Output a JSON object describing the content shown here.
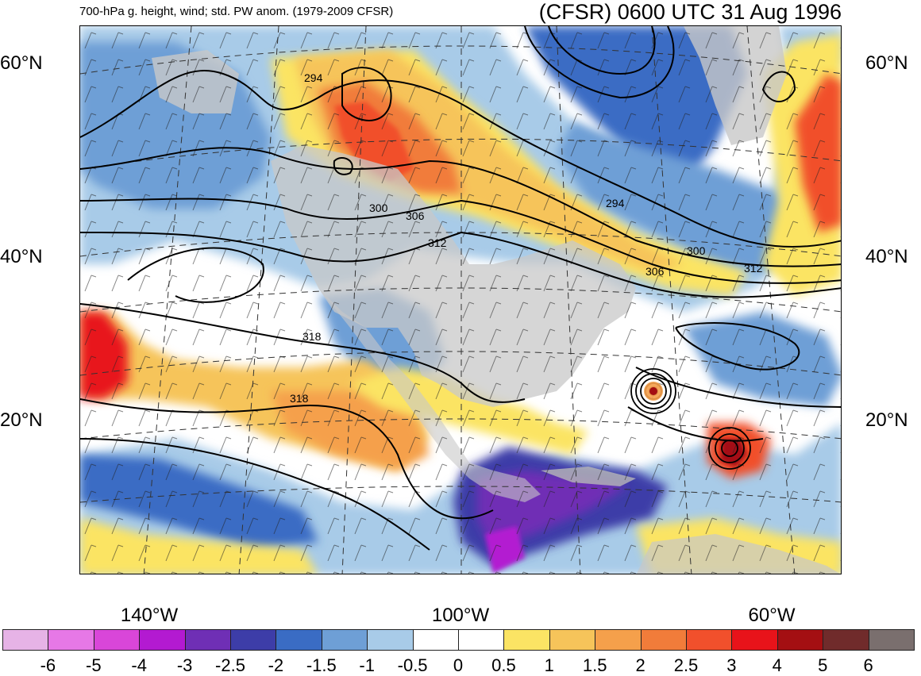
{
  "title": {
    "subtitle": "700-hPa g. height, wind; std. PW anom. (1979-2009 CFSR)",
    "main": "(CFSR) 0600 UTC 31 Aug 1996"
  },
  "axes": {
    "lat_labels": [
      {
        "id": "lat-60-left",
        "text": "60°N"
      },
      {
        "id": "lat-40-left",
        "text": "40°N"
      },
      {
        "id": "lat-20-left",
        "text": "20°N"
      },
      {
        "id": "lat-60-right",
        "text": "60°N"
      },
      {
        "id": "lat-40-right",
        "text": "40°N"
      },
      {
        "id": "lat-20-right",
        "text": "20°N"
      }
    ],
    "lon_labels": [
      "140°W",
      "100°W",
      "60°W"
    ]
  },
  "contour_labels": [
    "294",
    "300",
    "306",
    "312",
    "318",
    "318",
    "294",
    "300",
    "306",
    "312"
  ],
  "colorbar": {
    "colors": [
      "#e6b3e6",
      "#e678e6",
      "#d946d9",
      "#b31ad1",
      "#6f2fb5",
      "#3d3da8",
      "#3a6cc4",
      "#6e9fd6",
      "#a8cbe8",
      "#ffffff",
      "#ffffff",
      "#fbe464",
      "#f6c45a",
      "#f5a04b",
      "#f17c3a",
      "#f1502c",
      "#e8131a",
      "#a40f12",
      "#702b2b",
      "#7a6f6e"
    ],
    "labels": [
      "-6",
      "-5",
      "-4",
      "-3",
      "-2.5",
      "-2",
      "-1.5",
      "-1",
      "-0.5",
      "0",
      "0.5",
      "1",
      "1.5",
      "2",
      "2.5",
      "3",
      "4",
      "5",
      "6"
    ]
  }
}
